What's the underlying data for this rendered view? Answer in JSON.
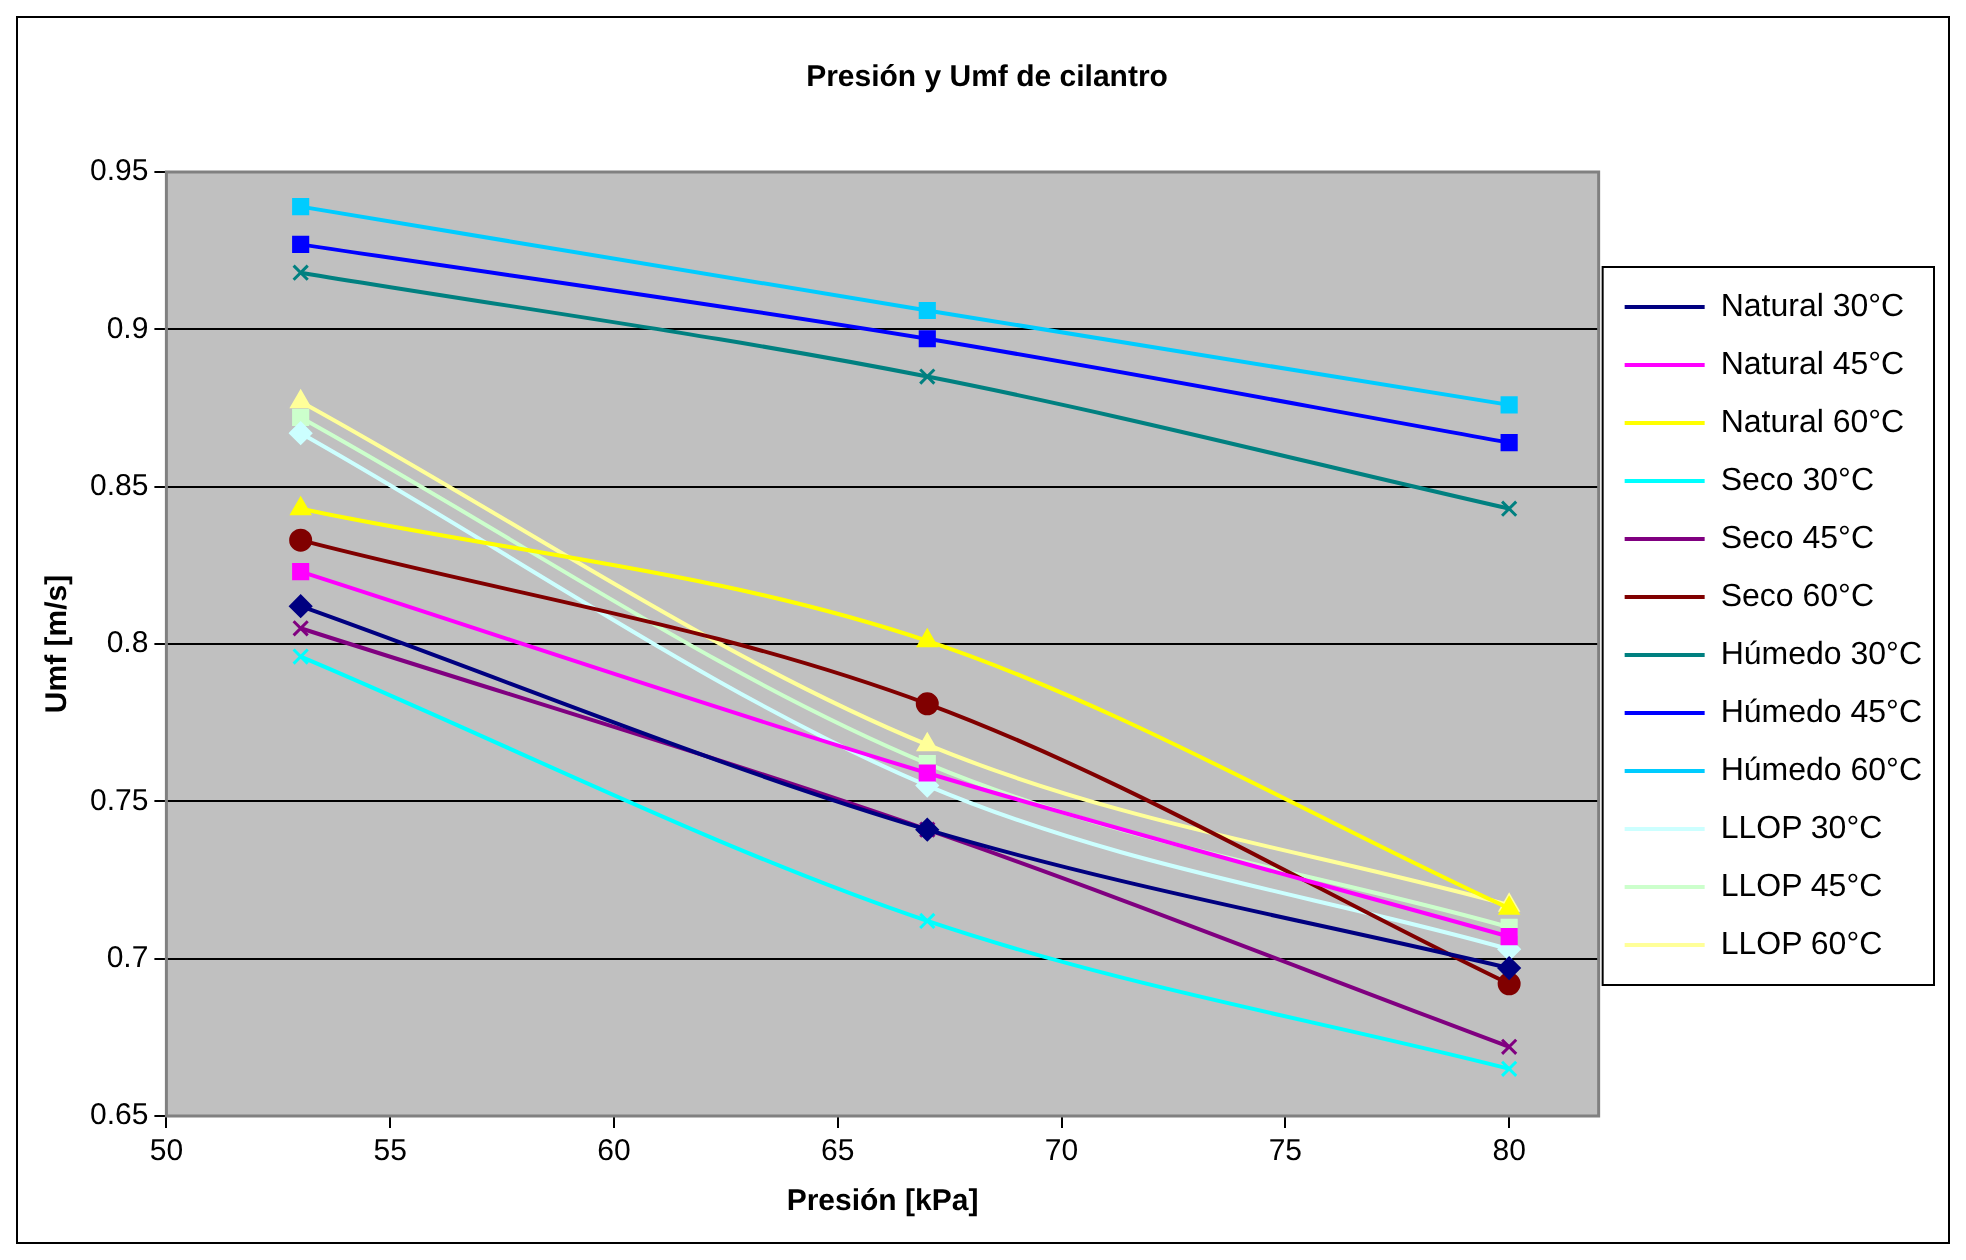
{
  "chart_data": {
    "type": "line",
    "title": "Presión y Umf de cilantro",
    "xlabel": "Presión [kPa]",
    "ylabel": "Umf [m/s]",
    "x": [
      53,
      67,
      80
    ],
    "series": [
      {
        "name": "Natural 30°C",
        "color": "#000080",
        "marker": "diamond",
        "values": [
          0.812,
          0.741,
          0.697
        ]
      },
      {
        "name": "Natural 45°C",
        "color": "#ff00ff",
        "marker": "square",
        "values": [
          0.823,
          0.759,
          0.707
        ]
      },
      {
        "name": "Natural 60°C",
        "color": "#ffff00",
        "marker": "triangle",
        "values": [
          0.843,
          0.801,
          0.716
        ]
      },
      {
        "name": "Seco 30°C",
        "color": "#00ffff",
        "marker": "cross",
        "values": [
          0.796,
          0.712,
          0.665
        ]
      },
      {
        "name": "Seco 45°C",
        "color": "#800080",
        "marker": "cross",
        "values": [
          0.805,
          0.741,
          0.672
        ]
      },
      {
        "name": "Seco 60°C",
        "color": "#800000",
        "marker": "circle",
        "values": [
          0.833,
          0.781,
          0.692
        ]
      },
      {
        "name": "Húmedo 30°C",
        "color": "#008080",
        "marker": "cross",
        "values": [
          0.918,
          0.885,
          0.843
        ]
      },
      {
        "name": "Húmedo 45°C",
        "color": "#0000ff",
        "marker": "square",
        "values": [
          0.927,
          0.897,
          0.864
        ]
      },
      {
        "name": "Húmedo 60°C",
        "color": "#00ccff",
        "marker": "square",
        "values": [
          0.939,
          0.906,
          0.876
        ]
      },
      {
        "name": "LLOP 30°C",
        "color": "#ccffff",
        "marker": "diamond",
        "values": [
          0.867,
          0.755,
          0.703
        ]
      },
      {
        "name": "LLOP 45°C",
        "color": "#ccffcc",
        "marker": "square",
        "values": [
          0.872,
          0.762,
          0.71
        ]
      },
      {
        "name": "LLOP 60°C",
        "color": "#ffff99",
        "marker": "triangle",
        "values": [
          0.877,
          0.768,
          0.717
        ]
      }
    ],
    "xlim": [
      50,
      82
    ],
    "xticks": [
      50,
      55,
      60,
      65,
      70,
      75,
      80
    ],
    "ylim": [
      0.65,
      0.95
    ],
    "yticks": [
      0.65,
      0.7,
      0.75,
      0.8,
      0.85,
      0.9,
      0.95
    ],
    "grid": "y",
    "legend": "right"
  }
}
